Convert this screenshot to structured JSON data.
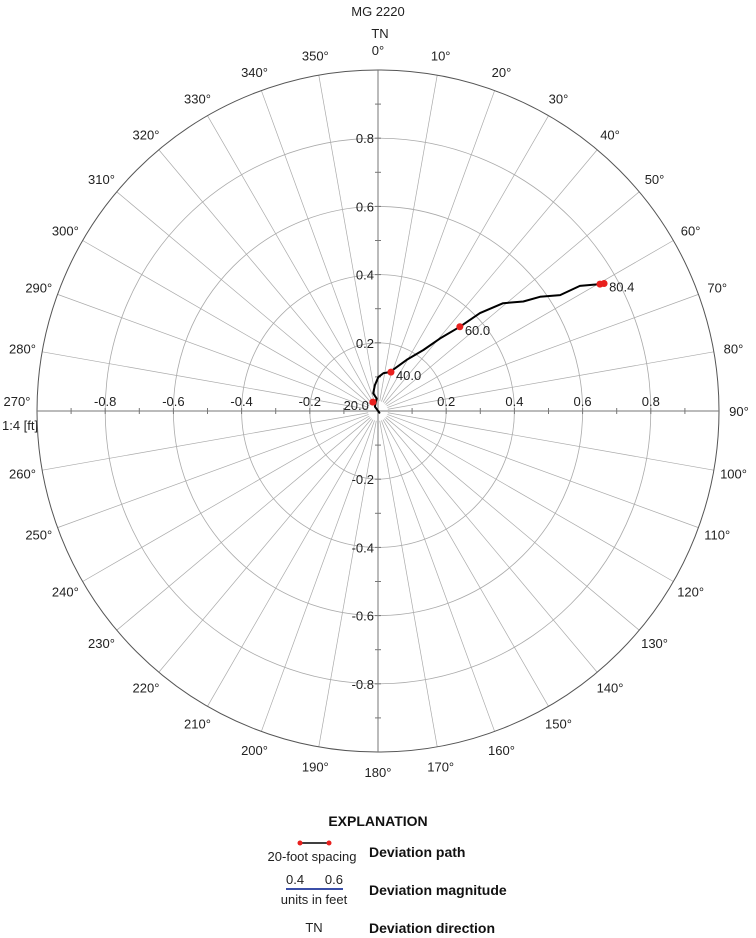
{
  "chart_data": {
    "type": "polar",
    "title": "MG 2220",
    "north_label": "TN",
    "scale_label": "1:4 [ft]",
    "radial_range": [
      0,
      1.0
    ],
    "radial_ticks": [
      0.2,
      0.4,
      0.6,
      0.8
    ],
    "axis_tick_labels": {
      "horizontal": [
        "-0.8",
        "-0.6",
        "-0.4",
        "-0.2",
        "0.2",
        "0.4",
        "0.6",
        "0.8"
      ],
      "vertical": [
        "0.8",
        "0.6",
        "0.4",
        "0.2",
        "-0.2",
        "-0.4",
        "-0.6",
        "-0.8"
      ]
    },
    "angle_labels": [
      "0°",
      "10°",
      "20°",
      "30°",
      "40°",
      "50°",
      "60°",
      "70°",
      "80°",
      "90°",
      "100°",
      "110°",
      "120°",
      "130°",
      "140°",
      "150°",
      "160°",
      "170°",
      "180°",
      "190°",
      "200°",
      "210°",
      "220°",
      "230°",
      "240°",
      "250°",
      "260°",
      "270°",
      "280°",
      "290°",
      "300°",
      "310°",
      "320°",
      "330°",
      "340°",
      "350°"
    ],
    "grid": true,
    "path_color": "#000000",
    "marker_color": "#e8201e",
    "path_east_north_ft": [
      [
        0.0,
        0.0
      ],
      [
        0.004,
        -0.005
      ],
      [
        -0.009,
        0.013
      ],
      [
        -0.004,
        0.037
      ],
      [
        -0.014,
        0.052
      ],
      [
        -0.009,
        0.076
      ],
      [
        0.001,
        0.099
      ],
      [
        0.016,
        0.111
      ],
      [
        0.035,
        0.114
      ],
      [
        0.084,
        0.15
      ],
      [
        0.133,
        0.179
      ],
      [
        0.182,
        0.213
      ],
      [
        0.24,
        0.247
      ],
      [
        0.299,
        0.287
      ],
      [
        0.367,
        0.316
      ],
      [
        0.426,
        0.321
      ],
      [
        0.475,
        0.335
      ],
      [
        0.534,
        0.34
      ],
      [
        0.592,
        0.367
      ],
      [
        0.651,
        0.372
      ],
      [
        0.663,
        0.374
      ]
    ],
    "depth_markers": [
      {
        "label": "20.0",
        "east": -0.015,
        "north": 0.026,
        "side": "left"
      },
      {
        "label": "40.0",
        "east": 0.038,
        "north": 0.114,
        "side": "right"
      },
      {
        "label": "60.0",
        "east": 0.24,
        "north": 0.247,
        "side": "right"
      },
      {
        "label": "",
        "east": 0.651,
        "north": 0.372,
        "side": "right"
      },
      {
        "label": "80.4",
        "east": 0.663,
        "north": 0.374,
        "side": "right"
      }
    ]
  },
  "legend": {
    "title": "EXPLANATION",
    "path": {
      "sample_label": "20-foot spacing",
      "label": "Deviation path"
    },
    "magnitude": {
      "left": "0.4",
      "right": "0.6",
      "sample_label": "units in feet",
      "label": "Deviation magnitude",
      "color": "#3b4fa8"
    },
    "direction": {
      "sample_label": "TN",
      "label": "Deviation direction"
    }
  }
}
